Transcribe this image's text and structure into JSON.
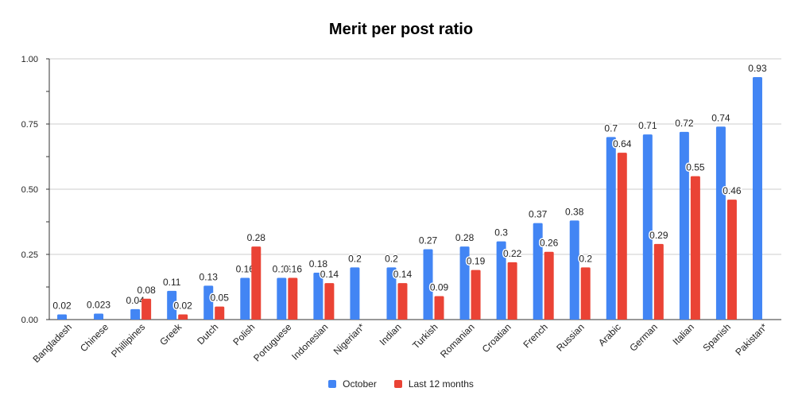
{
  "chart_data": {
    "type": "bar",
    "title": "Merit per post ratio",
    "categories": [
      "Bangladesh",
      "Chinese",
      "Phillipines",
      "Greek",
      "Dutch",
      "Polish",
      "Portuguese",
      "Indonesian",
      "Nigerian*",
      "Indian",
      "Turkish",
      "Romanian",
      "Croatian",
      "French",
      "Russian",
      "Arabic",
      "German",
      "Italian",
      "Spanish",
      "Pakistan*"
    ],
    "series": [
      {
        "name": "October",
        "color": "#4285f4",
        "values": [
          0.02,
          0.023,
          0.04,
          0.11,
          0.13,
          0.16,
          0.16,
          0.18,
          0.2,
          0.2,
          0.27,
          0.28,
          0.3,
          0.37,
          0.38,
          0.7,
          0.71,
          0.72,
          0.74,
          0.93
        ]
      },
      {
        "name": "Last 12 months",
        "color": "#ea4335",
        "values": [
          null,
          null,
          0.08,
          0.02,
          0.05,
          0.28,
          0.16,
          0.14,
          null,
          0.14,
          0.09,
          0.19,
          0.22,
          0.26,
          0.2,
          0.64,
          0.29,
          0.55,
          0.46,
          null
        ]
      }
    ],
    "y_ticks": [
      "0.00",
      "0.25",
      "0.50",
      "0.75",
      "1.00"
    ],
    "ylim": [
      0,
      1
    ],
    "grid": true,
    "legend_position": "bottom"
  }
}
